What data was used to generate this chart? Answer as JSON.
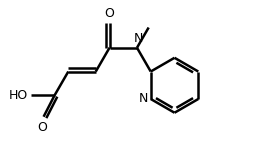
{
  "background_color": "#ffffff",
  "line_color": "#000000",
  "line_width": 1.8,
  "figsize": [
    2.61,
    1.54
  ],
  "dpi": 100,
  "xlim": [
    0.0,
    1.0
  ],
  "ylim": [
    0.0,
    1.0
  ],
  "font_size": 9.0
}
